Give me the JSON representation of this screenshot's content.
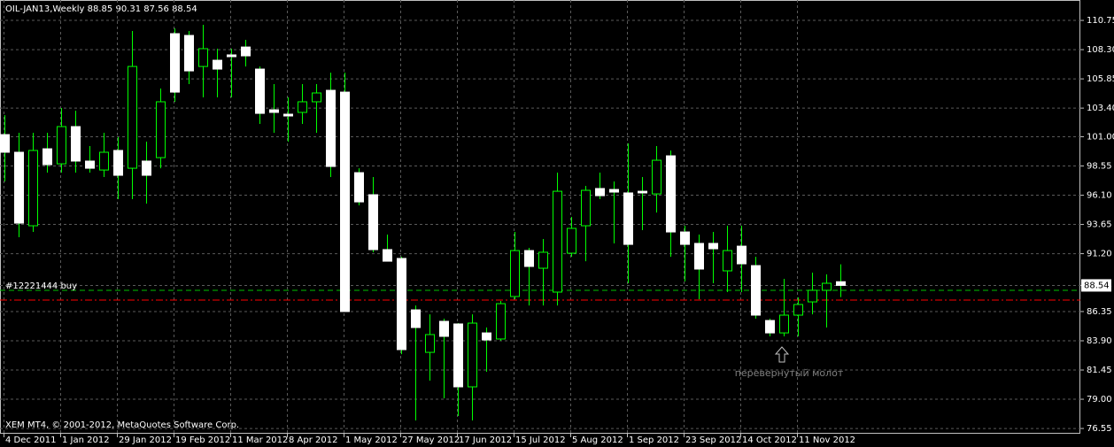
{
  "chart_data": {
    "type": "candlestick",
    "title": "OIL-JAN13,Weekly  88.85 90.31 87.56 88.54",
    "footer": "XEM MT4, © 2001-2012, MetaQuotes Software Corp.",
    "categories": [
      "4 Dec 2011",
      null,
      null,
      null,
      "1 Jan 2012",
      null,
      null,
      null,
      "29 Jan 2012",
      null,
      null,
      null,
      "19 Feb 2012",
      null,
      null,
      null,
      "11 Mar 2012",
      null,
      null,
      null,
      "8 Apr 2012",
      null,
      null,
      null,
      "1 May 2012",
      null,
      null,
      null,
      "27 May 2012",
      null,
      null,
      null,
      "17 Jun 2012",
      null,
      null,
      null,
      "15 Jul 2012",
      null,
      null,
      null,
      "5 Aug 2012",
      null,
      null,
      null,
      "1 Sep 2012",
      null,
      null,
      null,
      "23 Sep 2012",
      null,
      null,
      null,
      "14 Oct 2012",
      null,
      null,
      null,
      "11 Nov 2012",
      null,
      null,
      null
    ],
    "open": [
      101.18,
      99.7,
      93.54,
      99.99,
      98.73,
      101.85,
      98.96,
      98.21,
      99.85,
      98.36,
      98.96,
      99.25,
      109.64,
      109.49,
      106.89,
      107.41,
      107.86,
      108.52,
      106.67,
      103.26,
      102.89,
      103.04,
      103.93,
      104.89,
      104.74,
      97.99,
      96.14,
      91.54,
      90.8,
      86.49,
      82.93,
      85.53,
      85.31,
      80.04,
      84.56,
      84.05,
      87.61,
      91.46,
      89.98,
      87.98,
      91.24,
      93.54,
      96.66,
      96.58,
      96.29,
      96.43,
      96.21,
      99.4,
      93.02,
      92.06,
      92.06,
      89.76,
      91.83,
      90.2,
      85.6,
      84.56,
      86.05,
      87.16,
      88.13,
      88.85
    ],
    "high": [
      102.81,
      101.33,
      101.33,
      101.33,
      103.41,
      103.18,
      100.22,
      101.33,
      100.96,
      109.86,
      100.59,
      105.04,
      110.08,
      109.86,
      110.38,
      108.38,
      108.38,
      109.12,
      106.89,
      105.41,
      104.3,
      105.41,
      105.41,
      106.37,
      106.37,
      98.36,
      97.62,
      92.8,
      90.94,
      86.86,
      86.12,
      85.75,
      85.38,
      86.12,
      85.01,
      87.24,
      93.02,
      91.69,
      92.43,
      97.99,
      94.28,
      96.88,
      97.99,
      97.25,
      100.44,
      97.62,
      100.22,
      99.85,
      93.54,
      92.8,
      93.02,
      93.54,
      93.54,
      90.94,
      85.75,
      89.09,
      87.53,
      89.61,
      89.46,
      90.31
    ],
    "low": [
      97.25,
      92.58,
      93.02,
      97.99,
      97.99,
      97.99,
      97.99,
      97.62,
      95.77,
      95.77,
      95.4,
      98.36,
      103.93,
      105.41,
      104.3,
      104.3,
      104.3,
      106.89,
      102.07,
      101.33,
      100.59,
      102.07,
      101.33,
      97.62,
      86.35,
      95.25,
      91.32,
      90.57,
      82.78,
      77.22,
      80.56,
      79.08,
      77.59,
      77.22,
      81.3,
      83.9,
      87.38,
      86.86,
      86.86,
      86.86,
      90.94,
      90.57,
      95.77,
      92.06,
      88.72,
      93.17,
      94.65,
      90.94,
      88.87,
      87.38,
      88.72,
      87.98,
      87.98,
      85.75,
      84.27,
      84.27,
      84.27,
      86.12,
      85.01,
      87.56
    ],
    "close": [
      99.7,
      93.76,
      99.85,
      98.66,
      101.85,
      98.96,
      98.36,
      99.7,
      97.77,
      106.89,
      97.77,
      103.93,
      104.74,
      106.52,
      108.38,
      106.67,
      107.71,
      107.78,
      102.96,
      103.04,
      102.74,
      103.93,
      104.67,
      98.51,
      86.35,
      95.54,
      91.54,
      90.57,
      83.16,
      85.01,
      84.42,
      84.27,
      80.04,
      85.38,
      83.97,
      87.01,
      91.46,
      90.13,
      91.32,
      96.43,
      93.32,
      96.51,
      96.06,
      96.36,
      91.98,
      96.29,
      99.03,
      93.02,
      91.98,
      89.91,
      91.61,
      91.46,
      90.35,
      86.05,
      84.56,
      86.05,
      86.94,
      88.13,
      88.72,
      88.54
    ],
    "up_color": "#000000",
    "down_color": "#ffffff",
    "wick_color": "#00ff00",
    "ylim": [
      76.11,
      112.46
    ],
    "yticks": [
      76.55,
      {
        "value": 79.0,
        "label": "79.00"
      },
      81.45,
      {
        "value": 83.9,
        "label": "83.90"
      },
      86.35,
      88.54,
      {
        "value": 91.2,
        "label": "91.20"
      },
      93.65,
      {
        "value": 96.1,
        "label": "96.10"
      },
      98.55,
      {
        "value": 101.0,
        "label": "101.00"
      },
      {
        "value": 103.4,
        "label": "103.40"
      },
      105.85,
      {
        "value": 108.3,
        "label": "108.30"
      },
      110.75
    ],
    "current_price": 88.54,
    "order_line": {
      "label": "#12221444 buy",
      "value": 88.13,
      "color": "#00c000"
    },
    "stop_line": {
      "value": 87.31,
      "color": "#ff0000"
    },
    "annotation": {
      "text": "перевернутый молот",
      "index": 55
    },
    "grid": true
  }
}
